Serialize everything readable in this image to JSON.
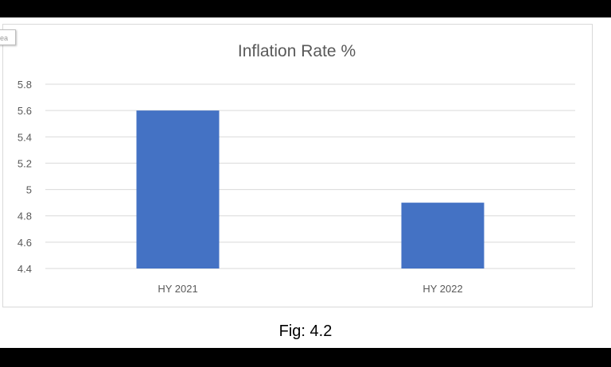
{
  "tab_text": "ea",
  "caption": "Fig: 4.2",
  "chart_data": {
    "type": "bar",
    "title": "Inflation Rate %",
    "categories": [
      "HY 2021",
      "HY 2022"
    ],
    "values": [
      5.6,
      4.9
    ],
    "xlabel": "",
    "ylabel": "",
    "ylim": [
      4.4,
      5.8
    ],
    "yticks": [
      "4.4",
      "4.6",
      "4.8",
      "5",
      "5.2",
      "5.4",
      "5.6",
      "5.8"
    ],
    "grid": true,
    "legend": "none",
    "bar_color": "#4472c4",
    "grid_color": "#d9d9d9"
  }
}
